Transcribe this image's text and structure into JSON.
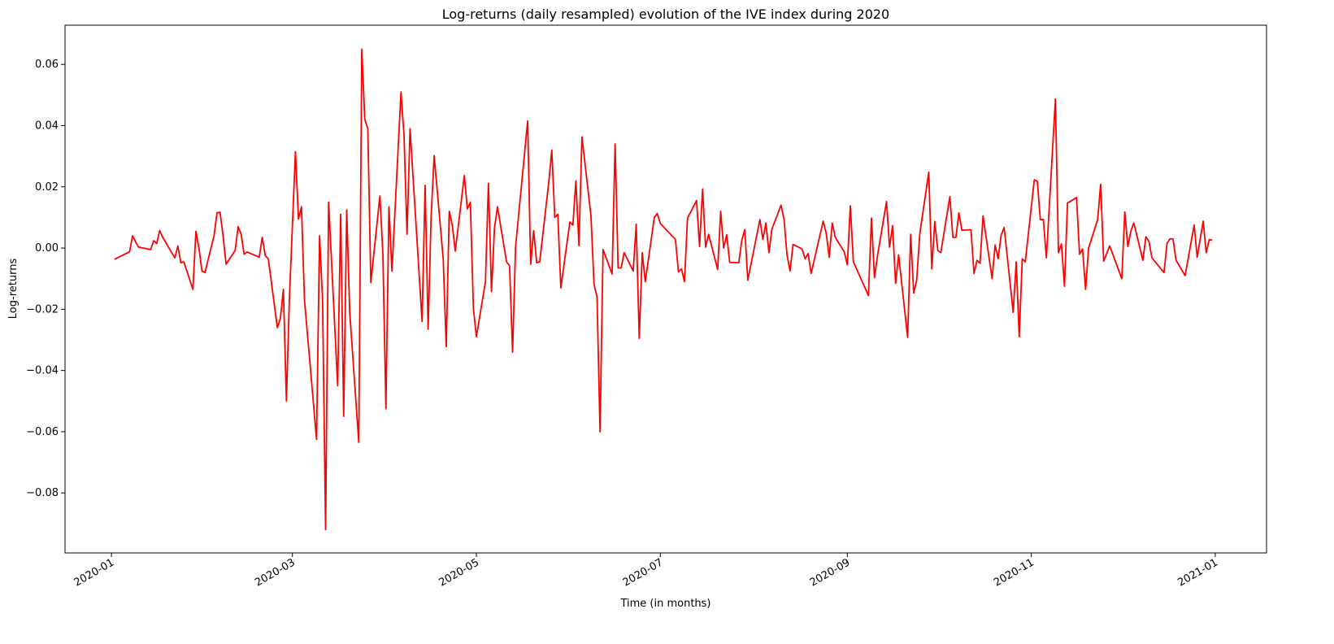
{
  "chart_data": {
    "type": "line",
    "title": "Log-returns (daily resampled) evolution of the IVE index during 2020",
    "x_label": "Time (in months)",
    "y_label": "Log-returns",
    "xlim": [
      -15.4,
      383
    ],
    "ylim": [
      -0.0996,
      0.0728
    ],
    "xticks": [
      {
        "value": 0,
        "label": "2020-01"
      },
      {
        "value": 60,
        "label": "2020-03"
      },
      {
        "value": 121,
        "label": "2020-05"
      },
      {
        "value": 182,
        "label": "2020-07"
      },
      {
        "value": 244,
        "label": "2020-09"
      },
      {
        "value": 305,
        "label": "2020-11"
      },
      {
        "value": 366,
        "label": "2021-01"
      }
    ],
    "yticks": [
      {
        "value": -0.08,
        "label": "−0.08"
      },
      {
        "value": -0.06,
        "label": "−0.06"
      },
      {
        "value": -0.04,
        "label": "−0.04"
      },
      {
        "value": -0.02,
        "label": "−0.02"
      },
      {
        "value": 0,
        "label": "0.00"
      },
      0.02,
      0.04,
      0.06
    ],
    "series": [
      {
        "color": "#ff0000",
        "x": [
          1,
          6,
          7,
          8,
          9,
          13,
          14,
          15,
          16,
          17,
          21,
          22,
          23,
          24,
          27,
          28,
          29,
          30,
          31,
          34,
          35,
          36,
          37,
          38,
          41,
          42,
          43,
          44,
          45,
          49,
          50,
          51,
          52,
          55,
          56,
          57,
          58,
          59,
          61,
          62,
          63,
          64,
          68,
          69,
          70,
          71,
          72,
          75,
          76,
          77,
          78,
          79,
          82,
          83,
          84,
          85,
          86,
          89,
          90,
          91,
          92,
          93,
          96,
          97,
          98,
          99,
          103,
          104,
          105,
          106,
          107,
          110,
          111,
          112,
          113,
          114,
          117,
          118,
          119,
          120,
          121,
          124,
          125,
          126,
          127,
          128,
          131,
          132,
          133,
          134,
          138,
          139,
          140,
          141,
          142,
          145,
          146,
          147,
          148,
          149,
          152,
          153,
          154,
          155,
          156,
          159,
          160,
          161,
          162,
          163,
          166,
          167,
          168,
          169,
          170,
          173,
          174,
          175,
          176,
          177,
          180,
          181,
          182,
          187,
          188,
          189,
          190,
          191,
          194,
          195,
          196,
          197,
          198,
          201,
          202,
          203,
          204,
          205,
          208,
          209,
          210,
          211,
          215,
          216,
          217,
          218,
          219,
          222,
          223,
          224,
          225,
          226,
          229,
          230,
          231,
          232,
          236,
          237,
          238,
          239,
          240,
          243,
          244,
          245,
          246,
          251,
          252,
          253,
          254,
          257,
          258,
          259,
          260,
          261,
          264,
          265,
          266,
          267,
          268,
          271,
          272,
          273,
          274,
          275,
          278,
          279,
          280,
          281,
          282,
          285,
          286,
          287,
          288,
          289,
          292,
          293,
          294,
          295,
          296,
          299,
          300,
          301,
          302,
          303,
          306,
          307,
          308,
          309,
          310,
          313,
          314,
          315,
          316,
          317,
          320,
          321,
          322,
          323,
          324,
          327,
          328,
          329,
          331,
          335,
          336,
          337,
          338,
          339,
          342,
          343,
          344,
          345,
          349,
          350,
          351,
          352,
          353,
          356,
          359,
          360,
          362,
          363,
          364,
          365
        ],
        "values": [
          -0.0037,
          -0.0012,
          0.004,
          0.002,
          0.0003,
          -0.0005,
          0.0024,
          0.0015,
          0.0057,
          0.0035,
          -0.0032,
          0.0007,
          -0.0048,
          -0.0045,
          -0.0135,
          0.0055,
          -0.0001,
          -0.0075,
          -0.008,
          0.004,
          0.0115,
          0.0117,
          0.004,
          -0.0053,
          -0.0008,
          0.007,
          0.0045,
          -0.002,
          -0.0013,
          -0.003,
          0.0035,
          -0.0025,
          -0.0035,
          -0.026,
          -0.023,
          -0.0135,
          -0.05,
          -0.0165,
          0.0315,
          0.0095,
          0.0135,
          -0.017,
          -0.0625,
          0.004,
          -0.017,
          -0.092,
          0.015,
          -0.045,
          0.011,
          -0.055,
          0.0125,
          -0.021,
          -0.0635,
          0.065,
          0.042,
          0.039,
          -0.0113,
          0.017,
          -0.002,
          -0.0525,
          0.0135,
          -0.0075,
          0.051,
          0.037,
          0.0045,
          0.039,
          -0.024,
          0.0205,
          -0.0265,
          0.0105,
          0.0302,
          -0.0035,
          -0.0322,
          0.012,
          0.0075,
          -0.001,
          0.0237,
          0.0128,
          0.015,
          -0.0195,
          -0.029,
          -0.011,
          0.0212,
          -0.0142,
          0.0065,
          0.0135,
          -0.0045,
          -0.0058,
          -0.034,
          0.0005,
          0.0415,
          -0.0053,
          0.0057,
          -0.0048,
          -0.0045,
          0.0215,
          0.032,
          0.01,
          0.011,
          -0.013,
          0.0085,
          0.0075,
          0.022,
          0.0008,
          0.0363,
          0.0105,
          -0.0118,
          -0.016,
          -0.06,
          -0.0005,
          -0.0085,
          0.034,
          -0.0065,
          -0.0065,
          -0.0015,
          -0.0075,
          0.0078,
          -0.0295,
          -0.0015,
          -0.011,
          0.01,
          0.0113,
          0.008,
          0.0028,
          -0.0078,
          -0.0068,
          -0.011,
          0.0098,
          0.0155,
          0.0005,
          0.0193,
          0.0003,
          0.0045,
          -0.007,
          0.012,
          0.0,
          0.0043,
          -0.0047,
          -0.0048,
          0.0025,
          0.006,
          -0.0105,
          0.0093,
          0.0028,
          0.0082,
          -0.0015,
          0.0062,
          0.014,
          0.0095,
          -0.0022,
          -0.0075,
          0.0012,
          -0.0003,
          -0.0035,
          -0.0018,
          -0.0083,
          0.0088,
          0.0048,
          -0.003,
          0.0082,
          0.0035,
          -0.0013,
          -0.0055,
          0.0138,
          -0.0045,
          -0.0155,
          0.0098,
          -0.0097,
          -0.0025,
          0.0152,
          0.0003,
          0.0073,
          -0.0115,
          -0.0022,
          -0.0292,
          0.0045,
          -0.0147,
          -0.0105,
          0.0045,
          0.0248,
          -0.0068,
          0.0087,
          -0.0008,
          -0.0015,
          0.0168,
          0.0035,
          0.0035,
          0.0115,
          0.0058,
          0.006,
          -0.0083,
          -0.004,
          -0.005,
          0.0105,
          -0.01,
          0.001,
          -0.0035,
          0.0042,
          0.0067,
          -0.021,
          -0.0045,
          -0.029,
          -0.0035,
          -0.0045,
          0.0223,
          0.0218,
          0.0093,
          0.0093,
          -0.0032,
          0.0487,
          -0.0015,
          0.0013,
          -0.0125,
          0.0147,
          0.0165,
          -0.002,
          -0.0003,
          -0.0135,
          0.0,
          0.0093,
          0.0208,
          -0.0043,
          0.0007,
          -0.01,
          0.0118,
          0.0005,
          0.0055,
          0.0082,
          -0.004,
          0.0037,
          0.0022,
          -0.0032,
          -0.008,
          0.0015,
          0.003,
          0.003,
          -0.004,
          -0.009,
          0.0075,
          -0.003,
          0.0088,
          -0.0015,
          0.0028,
          0.0025
        ]
      }
    ]
  }
}
